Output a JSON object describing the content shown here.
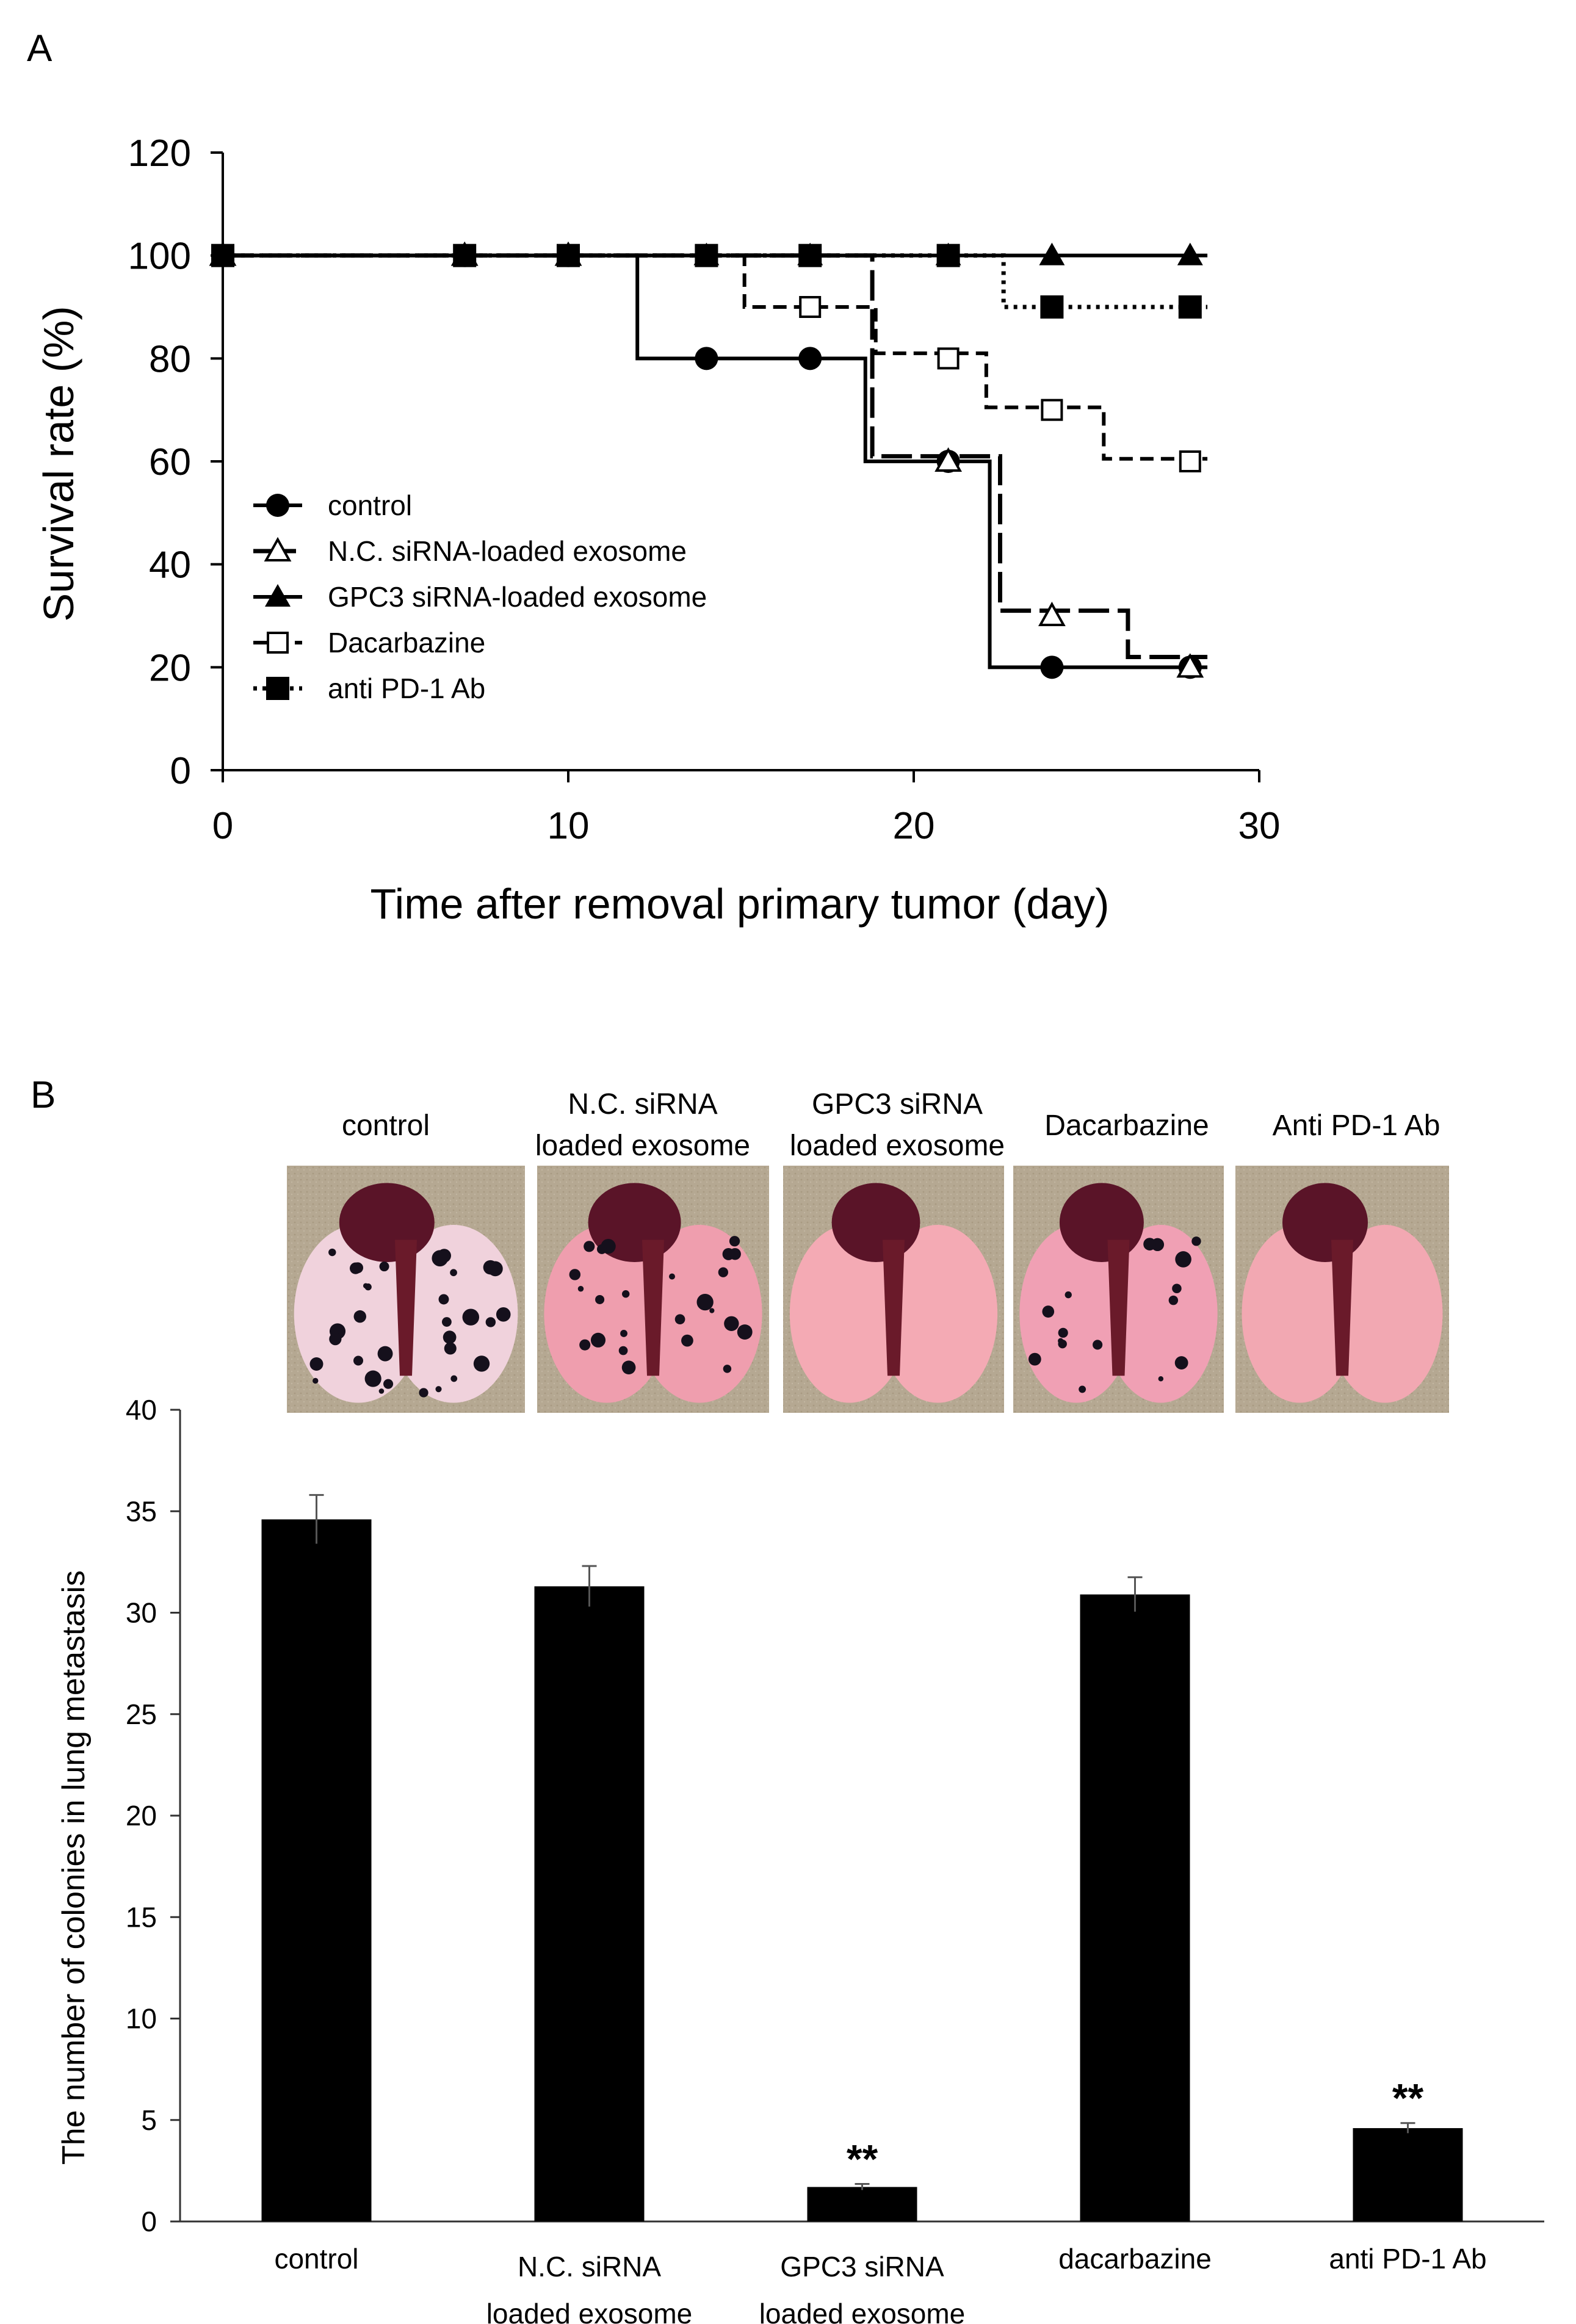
{
  "figure": {
    "panel_a_label": "A",
    "panel_b_label": "B"
  },
  "chart_data": [
    {
      "type": "line",
      "style": "step",
      "title": "",
      "xlabel": "Time after removal primary tumor (day)",
      "ylabel": "Survival rate (%)",
      "xlim": [
        0,
        30
      ],
      "ylim": [
        0,
        120
      ],
      "xticks": [
        0,
        10,
        20,
        30
      ],
      "yticks": [
        0,
        20,
        40,
        60,
        80,
        100,
        120
      ],
      "grid": false,
      "legend_position": "bottom-left",
      "series": [
        {
          "name": "control",
          "line": "solid",
          "marker": "filled-circle",
          "steps": [
            [
              0,
              100
            ],
            [
              12,
              80
            ],
            [
              18.6,
              60
            ],
            [
              22.2,
              20
            ],
            [
              28.5,
              20
            ]
          ],
          "marker_points": [
            [
              0,
              100
            ],
            [
              7,
              100
            ],
            [
              10,
              100
            ],
            [
              14,
              80
            ],
            [
              17,
              80
            ],
            [
              21,
              60
            ],
            [
              24,
              20
            ],
            [
              28,
              20
            ]
          ]
        },
        {
          "name": "N.C. siRNA-loaded exosome",
          "line": "long-dash",
          "marker": "open-triangle",
          "steps": [
            [
              0,
              100
            ],
            [
              18.8,
              61
            ],
            [
              22.5,
              31
            ],
            [
              26.2,
              22
            ],
            [
              28.5,
              22
            ]
          ],
          "marker_points": [
            [
              0,
              100
            ],
            [
              7,
              100
            ],
            [
              10,
              100
            ],
            [
              21,
              60
            ],
            [
              24,
              30
            ],
            [
              28,
              20
            ]
          ]
        },
        {
          "name": "GPC3 siRNA-loaded exosome",
          "line": "solid",
          "marker": "filled-triangle",
          "steps": [
            [
              0,
              100
            ],
            [
              28.5,
              100
            ]
          ],
          "marker_points": [
            [
              0,
              100
            ],
            [
              7,
              100
            ],
            [
              10,
              100
            ],
            [
              14,
              100
            ],
            [
              17,
              100
            ],
            [
              21,
              100
            ],
            [
              24,
              100
            ],
            [
              28,
              100
            ]
          ]
        },
        {
          "name": "Dacarbazine",
          "line": "dashed",
          "marker": "open-square",
          "steps": [
            [
              0,
              100
            ],
            [
              15.1,
              90
            ],
            [
              18.9,
              81
            ],
            [
              22.1,
              70.5
            ],
            [
              25.5,
              60.5
            ],
            [
              28.5,
              60.5
            ]
          ],
          "marker_points": [
            [
              0,
              100
            ],
            [
              17,
              90
            ],
            [
              21,
              80
            ],
            [
              24,
              70
            ],
            [
              28,
              60
            ]
          ]
        },
        {
          "name": "anti PD-1 Ab",
          "line": "dotted",
          "marker": "filled-square",
          "steps": [
            [
              0,
              100
            ],
            [
              22.6,
              90
            ],
            [
              28.5,
              90
            ]
          ],
          "marker_points": [
            [
              0,
              100
            ],
            [
              7,
              100
            ],
            [
              10,
              100
            ],
            [
              14,
              100
            ],
            [
              17,
              100
            ],
            [
              21,
              100
            ],
            [
              24,
              90
            ],
            [
              28,
              90
            ]
          ]
        }
      ]
    },
    {
      "type": "bar",
      "title": "",
      "xlabel": "",
      "ylabel": "The number of colonies in lung metastasis",
      "ylim": [
        0,
        40
      ],
      "yticks": [
        0,
        5,
        10,
        15,
        20,
        25,
        30,
        35,
        40
      ],
      "grid": false,
      "category_lines": [
        [
          "control"
        ],
        [
          "N.C. siRNA",
          "loaded exosome"
        ],
        [
          "GPC3 siRNA",
          "loaded exosome"
        ],
        [
          "dacarbazine"
        ],
        [
          "anti PD-1 Ab"
        ]
      ],
      "values": [
        34.6,
        31.3,
        1.7,
        30.9,
        4.6
      ],
      "errors": [
        1.2,
        1.0,
        0.15,
        0.85,
        0.25
      ],
      "significance": [
        "",
        "",
        "**",
        "",
        "**"
      ],
      "color": "#000000"
    }
  ],
  "photos": {
    "labels": [
      [
        "control"
      ],
      [
        "N.C. siRNA",
        "loaded exosome"
      ],
      [
        "GPC3 siRNA",
        "loaded exosome"
      ],
      [
        "Dacarbazine"
      ],
      [
        "Anti PD-1 Ab"
      ]
    ],
    "spots": [
      32,
      24,
      0,
      16,
      0
    ],
    "lung_color": [
      "#f0d2dc",
      "#ef9eae",
      "#f4aab4",
      "#f0a0b4",
      "#f2a8b2"
    ],
    "heart_color": "#5a1428",
    "background_color": "#b5a892"
  }
}
